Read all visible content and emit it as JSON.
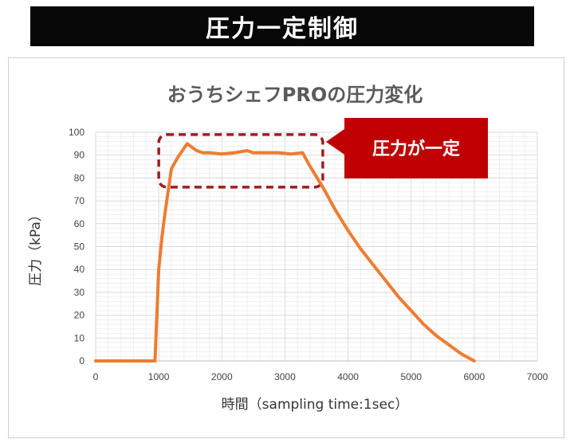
{
  "banner": {
    "title": "圧力一定制御"
  },
  "chart_data": {
    "type": "line",
    "title": "おうちシェフPROの圧力変化",
    "xlabel": "時間（sampling time:1sec）",
    "ylabel": "圧力（kPa）",
    "xlim": [
      0,
      7000
    ],
    "ylim": [
      0,
      100
    ],
    "x_ticks": [
      "0",
      "1000",
      "2000",
      "3000",
      "4000",
      "5000",
      "6000",
      "7000"
    ],
    "y_ticks": [
      "0",
      "10",
      "20",
      "30",
      "40",
      "50",
      "60",
      "70",
      "80",
      "90",
      "100"
    ],
    "grid": true,
    "series": [
      {
        "color": "#ed7d31",
        "points": [
          [
            0,
            0
          ],
          [
            900,
            0
          ],
          [
            940,
            0
          ],
          [
            1000,
            40
          ],
          [
            1050,
            54
          ],
          [
            1100,
            65
          ],
          [
            1200,
            84
          ],
          [
            1300,
            89
          ],
          [
            1400,
            93
          ],
          [
            1450,
            95
          ],
          [
            1500,
            94
          ],
          [
            1600,
            92
          ],
          [
            1700,
            91
          ],
          [
            1800,
            91
          ],
          [
            2000,
            90.5
          ],
          [
            2200,
            91
          ],
          [
            2400,
            92
          ],
          [
            2500,
            91
          ],
          [
            2700,
            91
          ],
          [
            2900,
            91
          ],
          [
            3100,
            90.5
          ],
          [
            3280,
            91
          ],
          [
            3400,
            85
          ],
          [
            3600,
            76
          ],
          [
            3800,
            66
          ],
          [
            4000,
            57
          ],
          [
            4200,
            49
          ],
          [
            4400,
            42
          ],
          [
            4600,
            35
          ],
          [
            4800,
            28
          ],
          [
            5000,
            22
          ],
          [
            5200,
            16
          ],
          [
            5400,
            11
          ],
          [
            5600,
            7
          ],
          [
            5800,
            3
          ],
          [
            6000,
            0
          ]
        ]
      }
    ],
    "annotation": {
      "text": "圧力が一定",
      "highlight_range_x": [
        1000,
        3600
      ],
      "highlight_range_y": [
        76,
        99
      ],
      "box_color": "#a01c20",
      "label_color": "#c00000"
    }
  }
}
